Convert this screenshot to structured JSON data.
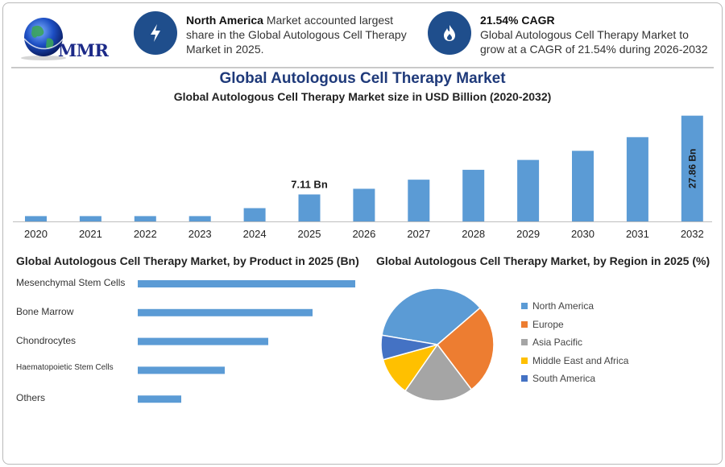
{
  "logo": {
    "text": "MMR"
  },
  "callouts": [
    {
      "icon": "lightning-icon",
      "bold": "North America",
      "rest": " Market accounted largest share in the Global Autologous Cell Therapy Market in 2025."
    },
    {
      "icon": "fire-drop-icon",
      "bold": "21.54% CAGR",
      "rest": "Global Autologous Cell Therapy Market to grow at a CAGR of 21.54% during 2026-2032"
    }
  ],
  "title": "Global Autologous Cell Therapy Market",
  "colors": {
    "bar": "#5b9bd5",
    "icon_bg": "#1f4e8c",
    "title": "#1f3a7a"
  },
  "chart_data": [
    {
      "type": "bar",
      "title": "Global Autologous Cell Therapy Market size in USD Billion (2020-2032)",
      "categories": [
        "2020",
        "2021",
        "2022",
        "2023",
        "2024",
        "2025",
        "2026",
        "2027",
        "2028",
        "2029",
        "2030",
        "2031",
        "2032"
      ],
      "values": [
        1.4,
        1.4,
        1.4,
        1.4,
        3.5,
        7.11,
        8.6,
        11.0,
        13.6,
        16.2,
        18.6,
        22.2,
        27.86
      ],
      "data_labels": {
        "5": "7.11 Bn",
        "12": "27.86 Bn"
      },
      "ylim": [
        0,
        28
      ]
    },
    {
      "type": "bar",
      "orientation": "horizontal",
      "title": "Global Autologous Cell Therapy Market, by Product in 2025 (Bn)",
      "categories": [
        "Mesenchymal Stem Cells",
        "Bone Marrow",
        "Chondrocytes",
        "Haematopoietic Stem Cells",
        "Others"
      ],
      "values": [
        2.7,
        2.17,
        1.62,
        1.08,
        0.54
      ]
    },
    {
      "type": "pie",
      "title": "Global Autologous Cell Therapy Market, by Region in 2025 (%)",
      "categories": [
        "North America",
        "Europe",
        "Asia Pacific",
        "Middle East and Africa",
        "South America"
      ],
      "values": [
        36,
        26,
        20,
        11,
        7
      ],
      "colors": [
        "#5b9bd5",
        "#ed7d31",
        "#a5a5a5",
        "#ffc000",
        "#4472c4"
      ],
      "legend": "right"
    }
  ]
}
